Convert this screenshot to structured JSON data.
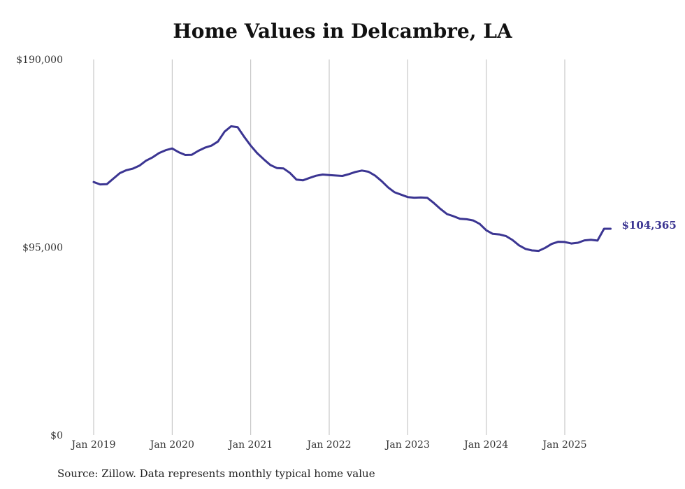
{
  "chart_data": {
    "type": "line",
    "title": "Home Values in Delcambre, LA",
    "xlabel": "",
    "ylabel": "",
    "ylim": [
      0,
      190000
    ],
    "y_ticks": [
      {
        "value": 0,
        "label": "$0"
      },
      {
        "value": 95000,
        "label": "$95,000"
      },
      {
        "value": 190000,
        "label": "$190,000"
      }
    ],
    "x_ticks": [
      {
        "value": 2019,
        "label": "Jan 2019"
      },
      {
        "value": 2020,
        "label": "Jan 2020"
      },
      {
        "value": 2021,
        "label": "Jan 2021"
      },
      {
        "value": 2022,
        "label": "Jan 2022"
      },
      {
        "value": 2023,
        "label": "Jan 2023"
      },
      {
        "value": 2024,
        "label": "Jan 2024"
      },
      {
        "value": 2025,
        "label": "Jan 2025"
      }
    ],
    "xlim": [
      2018.8,
      2025.8
    ],
    "grid": "vertical",
    "line_color": "#3b3592",
    "grid_color": "#bdbdbd",
    "end_label": "$104,365",
    "series": [
      {
        "x": [
          2019.0,
          2019.083,
          2019.167,
          2019.25,
          2019.333,
          2019.417,
          2019.5,
          2019.583,
          2019.667,
          2019.75,
          2019.833,
          2019.917,
          2020.0,
          2020.083,
          2020.167,
          2020.25,
          2020.333,
          2020.417,
          2020.5,
          2020.583,
          2020.667,
          2020.75,
          2020.833,
          2020.917,
          2021.0,
          2021.083,
          2021.167,
          2021.25,
          2021.333,
          2021.417,
          2021.5,
          2021.583,
          2021.667,
          2021.75,
          2021.833,
          2021.917,
          2022.0,
          2022.083,
          2022.167,
          2022.25,
          2022.333,
          2022.417,
          2022.5,
          2022.583,
          2022.667,
          2022.75,
          2022.833,
          2022.917,
          2023.0,
          2023.083,
          2023.167,
          2023.25,
          2023.333,
          2023.417,
          2023.5,
          2023.583,
          2023.667,
          2023.75,
          2023.833,
          2023.917,
          2024.0,
          2024.083,
          2024.167,
          2024.25,
          2024.333,
          2024.417,
          2024.5,
          2024.583,
          2024.667,
          2024.75,
          2024.833,
          2024.917,
          2025.0,
          2025.083,
          2025.167,
          2025.25,
          2025.333,
          2025.417,
          2025.5,
          2025.583
        ],
        "values": [
          128000,
          126800,
          126900,
          129700,
          132500,
          134000,
          134800,
          136300,
          138800,
          140500,
          142700,
          144100,
          145000,
          143100,
          141700,
          141800,
          143800,
          145400,
          146400,
          148500,
          153500,
          156200,
          155800,
          150900,
          146400,
          142600,
          139500,
          136600,
          135100,
          134900,
          132600,
          129200,
          128900,
          130100,
          131200,
          131800,
          131500,
          131300,
          131100,
          132000,
          133100,
          133800,
          133200,
          131300,
          128500,
          125300,
          122800,
          121600,
          120400,
          120100,
          120200,
          120000,
          117400,
          114400,
          111800,
          110700,
          109400,
          109200,
          108600,
          106800,
          103600,
          101800,
          101500,
          100700,
          98700,
          96000,
          94200,
          93400,
          93200,
          94700,
          96700,
          97800,
          97700,
          96900,
          97300,
          98500,
          98800,
          98400,
          104365,
          104365
        ]
      }
    ]
  },
  "source_note": "Source: Zillow. Data represents monthly typical home value"
}
